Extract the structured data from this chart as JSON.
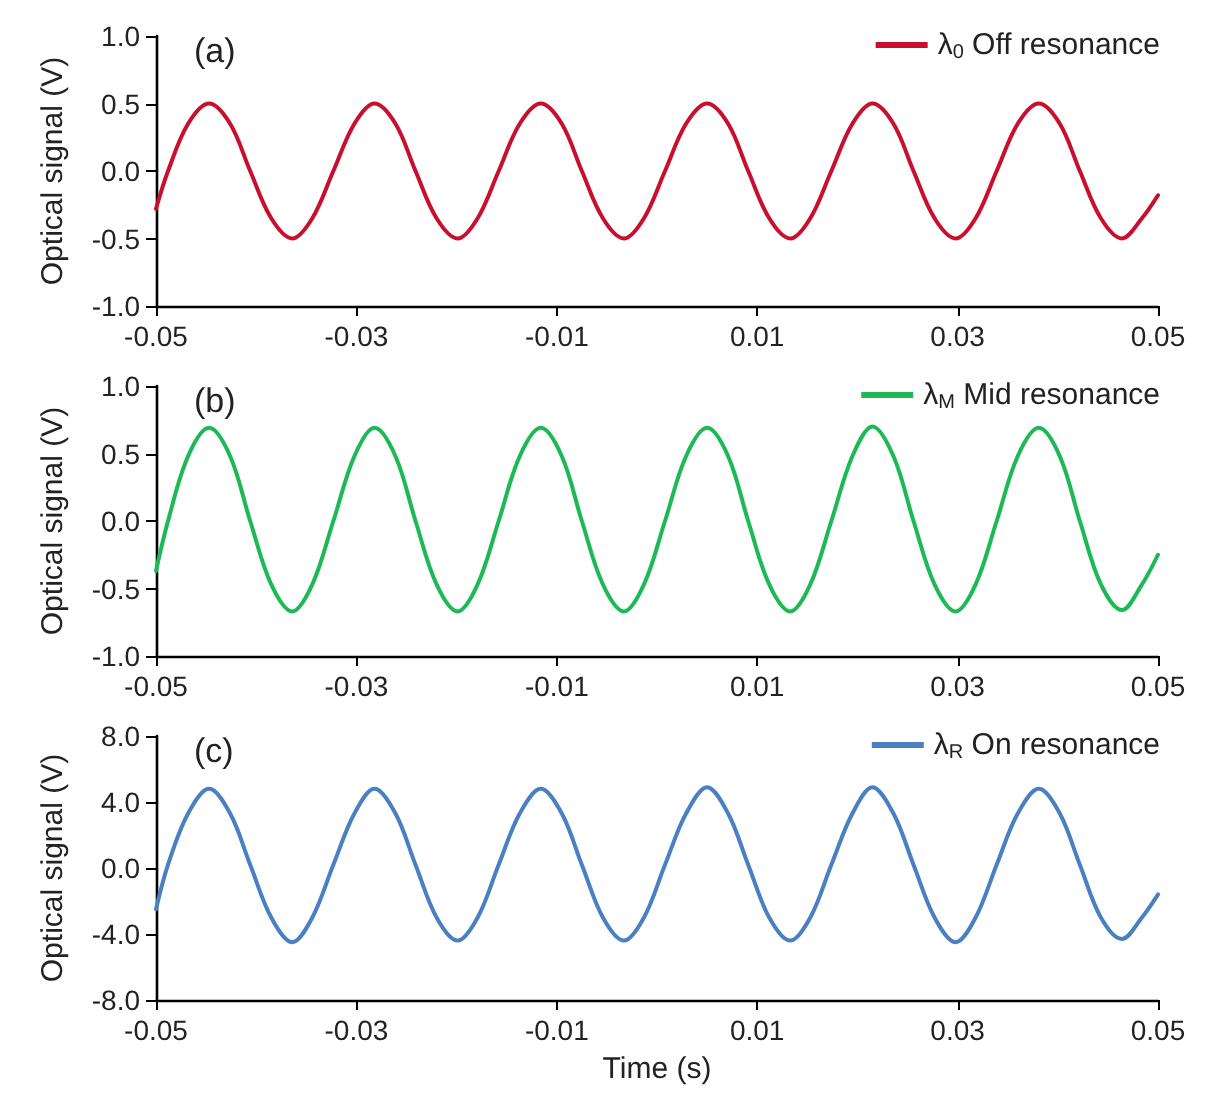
{
  "chart_data": [
    {
      "type": "line",
      "title": "(a)",
      "ylabel": "Optical signal (V)",
      "legend": "top right",
      "grid": false,
      "x": [
        -0.05,
        -0.0488,
        -0.0468,
        -0.0447,
        -0.0426,
        -0.0406,
        -0.0385,
        -0.0364,
        -0.0344,
        -0.0323,
        -0.0302,
        -0.0282,
        -0.0261,
        -0.0241,
        -0.022,
        -0.0199,
        -0.0179,
        -0.0158,
        -0.0137,
        -0.0116,
        -0.0095,
        -0.0075,
        -0.0054,
        -0.0033,
        -0.0013,
        0.0008,
        0.0029,
        0.005,
        0.0071,
        0.0091,
        0.0112,
        0.0133,
        0.0153,
        0.0174,
        0.0195,
        0.0215,
        0.0236,
        0.0256,
        0.0277,
        0.0298,
        0.0318,
        0.0339,
        0.036,
        0.0381,
        0.0402,
        0.0422,
        0.0443,
        0.0464,
        0.0484,
        0.05
      ],
      "series": [
        {
          "name": "λ$_{0}$ Off resonance",
          "color": "#c8102e",
          "values": [
            -0.28,
            0,
            0.35,
            0.5,
            0.35,
            0,
            -0.35,
            -0.5,
            -0.35,
            0,
            0.35,
            0.5,
            0.35,
            0,
            -0.35,
            -0.5,
            -0.35,
            0,
            0.35,
            0.5,
            0.35,
            0,
            -0.35,
            -0.5,
            -0.35,
            0,
            0.35,
            0.5,
            0.35,
            0,
            -0.35,
            -0.5,
            -0.35,
            0,
            0.35,
            0.5,
            0.35,
            0,
            -0.35,
            -0.5,
            -0.35,
            0,
            0.35,
            0.5,
            0.35,
            0,
            -0.35,
            -0.5,
            -0.35,
            -0.18
          ]
        }
      ],
      "xlim": [
        -0.05,
        0.05
      ],
      "xticks": [
        -0.05,
        -0.03,
        -0.01,
        0.01,
        0.03,
        0.05
      ],
      "ylim": [
        -1,
        1
      ],
      "yticks": [
        {
          "value": -1,
          "label": "-1.0"
        },
        {
          "value": -0.5,
          "label": "-0.5"
        },
        {
          "value": 0,
          "label": "0.0"
        },
        {
          "value": 0.5,
          "label": "0.5"
        },
        {
          "value": 1,
          "label": "1.0"
        }
      ]
    },
    {
      "type": "line",
      "title": "(b)",
      "ylabel": "Optical signal (V)",
      "legend": "top right",
      "grid": false,
      "x": [
        -0.05,
        -0.0488,
        -0.0468,
        -0.0447,
        -0.0426,
        -0.0406,
        -0.0385,
        -0.0364,
        -0.0344,
        -0.0323,
        -0.0302,
        -0.0282,
        -0.0261,
        -0.0241,
        -0.022,
        -0.0199,
        -0.0179,
        -0.0158,
        -0.0137,
        -0.0116,
        -0.0095,
        -0.0075,
        -0.0054,
        -0.0033,
        -0.0013,
        0.0008,
        0.0029,
        0.005,
        0.0071,
        0.0091,
        0.0112,
        0.0133,
        0.0153,
        0.0174,
        0.0195,
        0.0215,
        0.0236,
        0.0256,
        0.0277,
        0.0298,
        0.0318,
        0.0339,
        0.036,
        0.0381,
        0.0402,
        0.0422,
        0.0443,
        0.0464,
        0.0484,
        0.05
      ],
      "series": [
        {
          "name": "λ$_{M}$ Mid resonance",
          "color": "#1db954",
          "values": [
            -0.37,
            0,
            0.48,
            0.69,
            0.48,
            0,
            -0.47,
            -0.67,
            -0.47,
            0,
            0.48,
            0.69,
            0.48,
            0,
            -0.47,
            -0.67,
            -0.47,
            0,
            0.48,
            0.69,
            0.48,
            0,
            -0.47,
            -0.67,
            -0.47,
            0,
            0.48,
            0.69,
            0.48,
            0,
            -0.47,
            -0.67,
            -0.47,
            0,
            0.48,
            0.7,
            0.48,
            0,
            -0.47,
            -0.67,
            -0.47,
            0,
            0.48,
            0.69,
            0.48,
            0,
            -0.47,
            -0.66,
            -0.47,
            -0.25
          ]
        }
      ],
      "xlim": [
        -0.05,
        0.05
      ],
      "xticks": [
        -0.05,
        -0.03,
        -0.01,
        0.01,
        0.03,
        0.05
      ],
      "ylim": [
        -1,
        1
      ],
      "yticks": [
        {
          "value": -1,
          "label": "-1.0"
        },
        {
          "value": -0.5,
          "label": "-0.5"
        },
        {
          "value": 0,
          "label": "0.0"
        },
        {
          "value": 0.5,
          "label": "0.5"
        },
        {
          "value": 1,
          "label": "1.0"
        }
      ]
    },
    {
      "type": "line",
      "title": "(c)",
      "xlabel": "Time (s)",
      "ylabel": "Optical signal (V)",
      "legend": "top right",
      "grid": false,
      "x": [
        -0.05,
        -0.0488,
        -0.0468,
        -0.0447,
        -0.0426,
        -0.0406,
        -0.0385,
        -0.0364,
        -0.0344,
        -0.0323,
        -0.0302,
        -0.0282,
        -0.0261,
        -0.0241,
        -0.022,
        -0.0199,
        -0.0179,
        -0.0158,
        -0.0137,
        -0.0116,
        -0.0095,
        -0.0075,
        -0.0054,
        -0.0033,
        -0.0013,
        0.0008,
        0.0029,
        0.005,
        0.0071,
        0.0091,
        0.0112,
        0.0133,
        0.0153,
        0.0174,
        0.0195,
        0.0215,
        0.0236,
        0.0256,
        0.0277,
        0.0298,
        0.0318,
        0.0339,
        0.036,
        0.0381,
        0.0402,
        0.0422,
        0.0443,
        0.0464,
        0.0484,
        0.05
      ],
      "series": [
        {
          "name": "λ$_{R}$ On resonance",
          "color": "#4a7fc1",
          "values": [
            -2.5,
            0.2,
            3.3,
            4.8,
            3.3,
            0.2,
            -3.0,
            -4.5,
            -3.0,
            0.2,
            3.3,
            4.8,
            3.3,
            0.2,
            -3.0,
            -4.4,
            -3.0,
            0.2,
            3.3,
            4.8,
            3.3,
            0.2,
            -3.0,
            -4.4,
            -3.0,
            0.2,
            3.3,
            4.9,
            3.3,
            0.2,
            -3.0,
            -4.4,
            -3.0,
            0.2,
            3.3,
            4.9,
            3.3,
            0.2,
            -3.0,
            -4.5,
            -3.0,
            0.2,
            3.3,
            4.8,
            3.3,
            0.2,
            -3.0,
            -4.3,
            -3.0,
            -1.6
          ]
        }
      ],
      "xlim": [
        -0.05,
        0.05
      ],
      "xticks": [
        -0.05,
        -0.03,
        -0.01,
        0.01,
        0.03,
        0.05
      ],
      "ylim": [
        -8,
        8
      ],
      "yticks": [
        {
          "value": -8,
          "label": "-8.0"
        },
        {
          "value": -4,
          "label": "-4.0"
        },
        {
          "value": 0,
          "label": "0.0"
        },
        {
          "value": 4,
          "label": "4.0"
        },
        {
          "value": 8,
          "label": "8.0"
        }
      ]
    }
  ]
}
